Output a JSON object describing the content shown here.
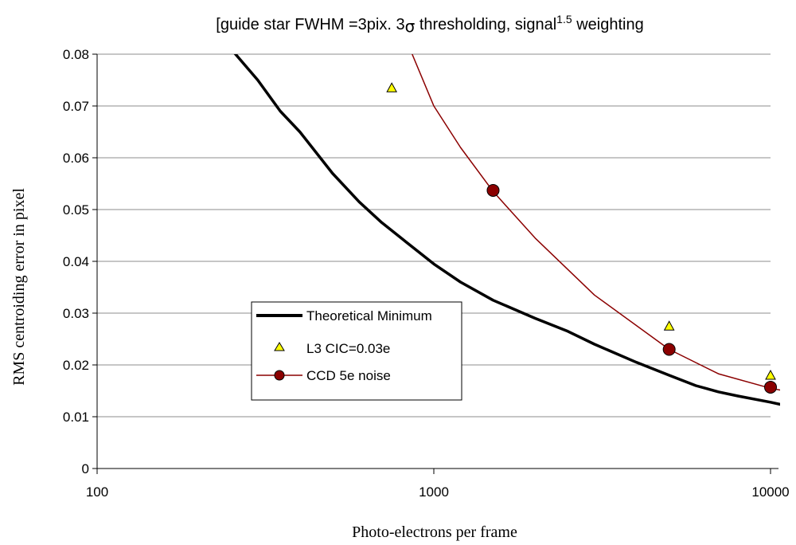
{
  "chart_data": {
    "type": "line",
    "title": {
      "prefix": "[guide star FWHM =3pix. 3",
      "sigma": "σ",
      "middle": " thresholding, signal",
      "superscript": "1.5",
      "suffix": " weighting"
    },
    "xlabel": "Photo-electrons per frame",
    "ylabel": "RMS centroiding error  in pixel",
    "x_scale": "log",
    "xlim": [
      100,
      10000
    ],
    "ylim": [
      0,
      0.08
    ],
    "x_ticks": [
      100,
      1000,
      10000
    ],
    "x_tick_labels": [
      "100",
      "1000",
      "10000"
    ],
    "y_ticks": [
      0,
      0.01,
      0.02,
      0.03,
      0.04,
      0.05,
      0.06,
      0.07,
      0.08
    ],
    "y_tick_labels": [
      "0",
      "0.01",
      "0.02",
      "0.03",
      "0.04",
      "0.05",
      "0.06",
      "0.07",
      "0.08"
    ],
    "grid": "horizontal",
    "legend_position": "center-left",
    "series": [
      {
        "name": "Theoretical Minimum",
        "style": "line",
        "color": "#000000",
        "x": [
          250,
          300,
          350,
          400,
          500,
          600,
          700,
          800,
          1000,
          1200,
          1500,
          2000,
          2500,
          3000,
          4000,
          5000,
          6000,
          7000,
          8000,
          10000,
          11000
        ],
        "y": [
          0.081,
          0.075,
          0.069,
          0.065,
          0.057,
          0.0515,
          0.0475,
          0.0445,
          0.0395,
          0.036,
          0.0325,
          0.029,
          0.0265,
          0.024,
          0.0205,
          0.018,
          0.016,
          0.0148,
          0.014,
          0.0128,
          0.0122
        ]
      },
      {
        "name": "L3 CIC=0.03e",
        "style": "markers",
        "marker": "triangle",
        "color": "#ffff00",
        "x": [
          750,
          5000,
          10000
        ],
        "y": [
          0.0735,
          0.0275,
          0.018
        ]
      },
      {
        "name": "CCD 5e noise",
        "style": "line+markers",
        "color": "#8b0000",
        "line_x": [
          850,
          1000,
          1200,
          1500,
          2000,
          3000,
          5000,
          7000,
          10000,
          11000
        ],
        "line_y": [
          0.081,
          0.07,
          0.062,
          0.0535,
          0.0445,
          0.0335,
          0.023,
          0.0183,
          0.0155,
          0.015
        ],
        "x": [
          1500,
          5000,
          10000
        ],
        "y": [
          0.0537,
          0.023,
          0.0157
        ]
      }
    ]
  }
}
